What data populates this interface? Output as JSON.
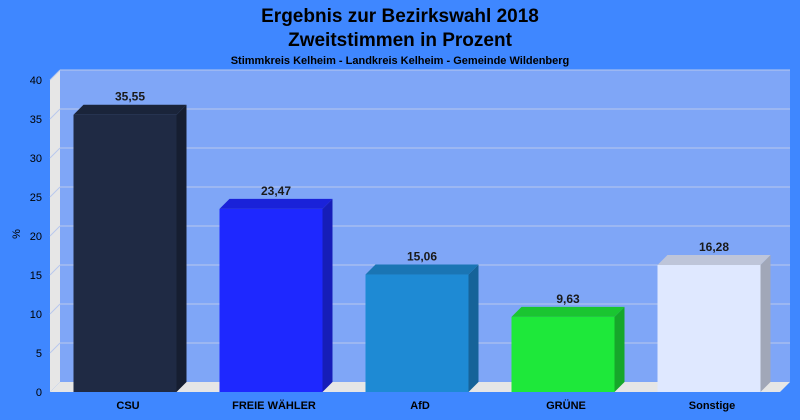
{
  "chart_data": {
    "type": "bar",
    "title": "Ergebnis zur Bezirkswahl 2018",
    "title2": "Zweitstimmen in Prozent",
    "subtitle": "Stimmkreis Kelheim - Landkreis Kelheim - Gemeinde Wildenberg",
    "ylabel": "%",
    "ylim": [
      0,
      40
    ],
    "yticks": [
      "0",
      "5",
      "10",
      "15",
      "20",
      "25",
      "30",
      "35",
      "40"
    ],
    "categories": [
      "CSU",
      "FREIE WÄHLER",
      "AfD",
      "GRÜNE",
      "Sonstige"
    ],
    "values": [
      35.55,
      23.47,
      15.06,
      9.63,
      16.28
    ],
    "value_labels": [
      "35,55",
      "23,47",
      "15,06",
      "9,63",
      "16,28"
    ],
    "colors": [
      "#1f2a44",
      "#1e28ff",
      "#1e8ad4",
      "#1ee83a",
      "#dfe8ff"
    ],
    "grid": true
  }
}
